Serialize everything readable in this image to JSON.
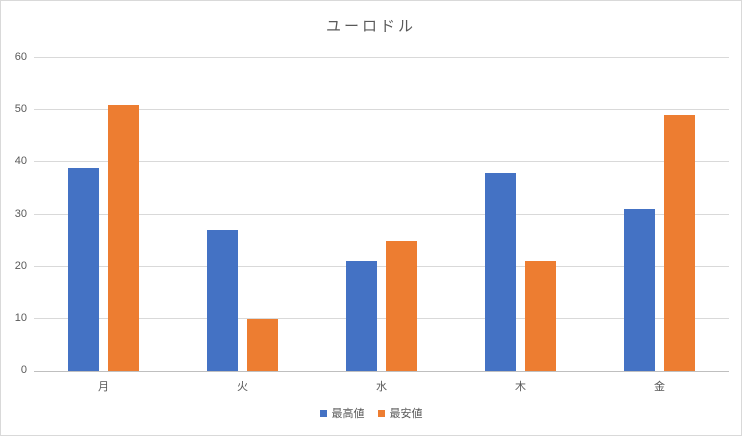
{
  "chart_data": {
    "type": "bar",
    "title": "ユーロドル",
    "categories": [
      "月",
      "火",
      "水",
      "木",
      "金"
    ],
    "series": [
      {
        "name": "最高値",
        "color": "#4472C4",
        "values": [
          39,
          27,
          21,
          38,
          31
        ]
      },
      {
        "name": "最安値",
        "color": "#ED7D31",
        "values": [
          51,
          10,
          25,
          21,
          49
        ]
      }
    ],
    "xlabel": "",
    "ylabel": "",
    "ylim": [
      0,
      60
    ],
    "yticks": [
      0,
      10,
      20,
      30,
      40,
      50,
      60
    ],
    "grid": true,
    "legend_position": "bottom"
  },
  "colors": {
    "series_high": "#4472C4",
    "series_low": "#ED7D31",
    "text": "#595959",
    "gridline": "#D9D9D9",
    "axis_line": "#BFBFBF",
    "chart_border": "#D9D9D9",
    "background": "#FFFFFF"
  }
}
